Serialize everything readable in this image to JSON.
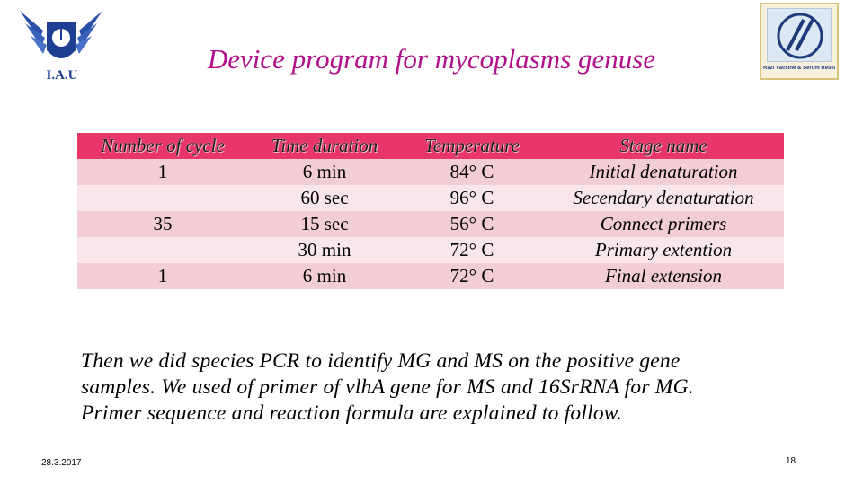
{
  "header": {
    "title": "Device program for mycoplasms genuse",
    "left_logo_text": "I.A.U",
    "right_logo_caption": "Razi Vaccine & Serum Research Institute"
  },
  "table": {
    "columns": [
      {
        "header": "Number of cycle",
        "cells": [
          "1",
          "",
          "35",
          "",
          "1"
        ]
      },
      {
        "header": "Time duration",
        "cells": [
          "6 min",
          "60 sec",
          "15 sec",
          "30 min",
          "6 min"
        ]
      },
      {
        "header": "Temperature",
        "cells": [
          "84° C",
          "96° C",
          "56° C",
          "72° C",
          "72° C"
        ]
      },
      {
        "header": "Stage name",
        "cells": [
          "Initial denaturation",
          "Secendary denaturation",
          "Connect primers",
          "Primary extention",
          "Final extension"
        ]
      }
    ]
  },
  "body_text": {
    "line1": "Then we did species PCR to identify MG and MS on the positive gene",
    "line2": "samples. We used of primer of vlhA gene for MS and 16SrRNA for MG.",
    "line3": "Primer sequence  and reaction formula are explained to follow."
  },
  "footer": {
    "date": "28.3.2017",
    "page_number": "18"
  },
  "colors": {
    "title": "#b0108a",
    "header_row": "#e8366b",
    "row_pink": "#f2cdd6",
    "row_light": "#f8e6ea"
  }
}
